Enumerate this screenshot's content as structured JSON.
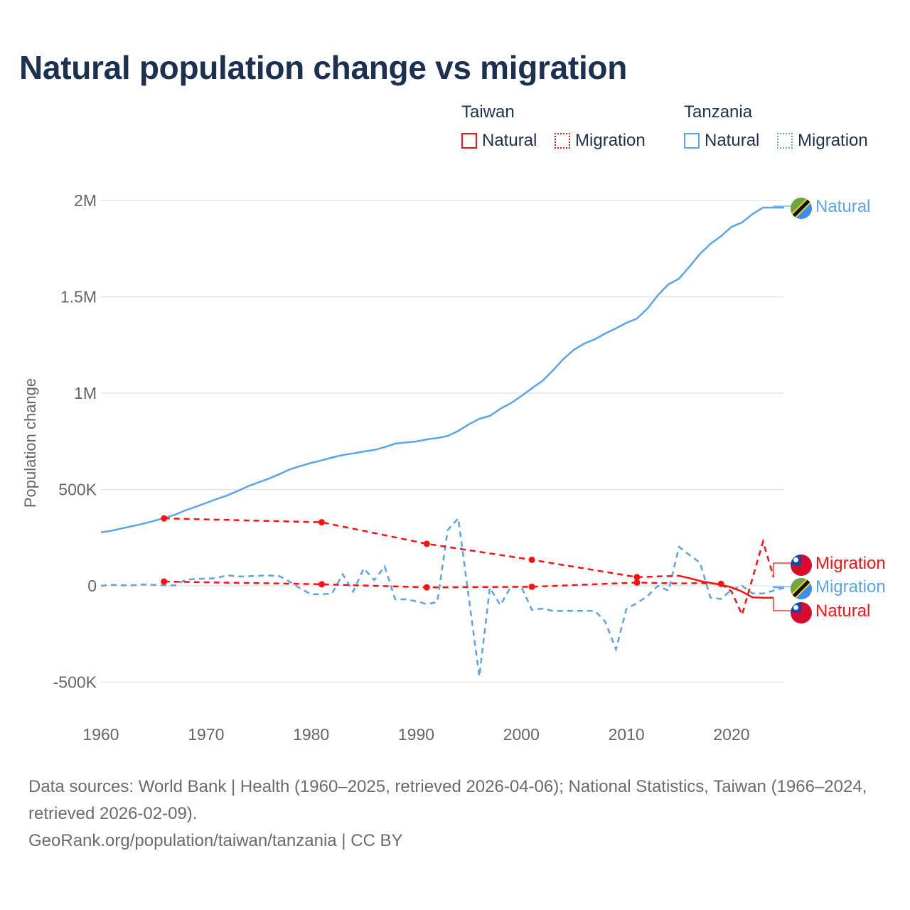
{
  "colors": {
    "taiwan": "#ff1010",
    "tanzania": "#5aa5ea",
    "title": "#1c3152",
    "grid": "#e6e6e6",
    "axis_text": "#666666"
  },
  "legend": {
    "groups": [
      {
        "heading": "Taiwan",
        "items": [
          "Natural",
          "Migration"
        ]
      },
      {
        "heading": "Tanzania",
        "items": [
          "Natural",
          "Migration"
        ]
      }
    ]
  },
  "footer": {
    "sources": "Data sources: World Bank | Health (1960–2025, retrieved 2026-04-06); National Statistics, Taiwan (1966–2024, retrieved 2026-02-09).",
    "credit": "GeoRank.org/population/taiwan/tanzania | CC BY"
  },
  "chart_data": {
    "type": "line",
    "title": "Natural population change vs migration",
    "xlabel": "",
    "ylabel": "Population change",
    "xlim": [
      1960,
      2025
    ],
    "ylim": [
      -550000,
      2100000
    ],
    "x_ticks": [
      1960,
      1970,
      1980,
      1990,
      2000,
      2010,
      2020
    ],
    "x_tick_labels": [
      "1960",
      "1970",
      "1980",
      "1990",
      "2000",
      "2010",
      "2020"
    ],
    "y_ticks": [
      -500000,
      0,
      500000,
      1000000,
      1500000,
      2000000
    ],
    "y_tick_labels": [
      "-500K",
      "0",
      "500K",
      "1M",
      "1.5M",
      "2M"
    ],
    "grid": true,
    "legend_placement": "top-right",
    "series": [
      {
        "name": "Natural",
        "country": "Tanzania",
        "flag": "tanzania-flag",
        "style": "solid",
        "color": "#5aa5ea",
        "end_label": "Natural",
        "x": [
          1960,
          1961,
          1962,
          1963,
          1964,
          1965,
          1966,
          1967,
          1968,
          1969,
          1970,
          1971,
          1972,
          1973,
          1974,
          1975,
          1976,
          1977,
          1978,
          1979,
          1980,
          1981,
          1982,
          1983,
          1984,
          1985,
          1986,
          1987,
          1988,
          1989,
          1990,
          1991,
          1992,
          1993,
          1994,
          1995,
          1996,
          1997,
          1998,
          1999,
          2000,
          2001,
          2002,
          2003,
          2004,
          2005,
          2006,
          2007,
          2008,
          2009,
          2010,
          2011,
          2012,
          2013,
          2014,
          2015,
          2016,
          2017,
          2018,
          2019,
          2020,
          2021,
          2022,
          2023,
          2024,
          2025
        ],
        "y": [
          277000,
          286000,
          298000,
          310000,
          322000,
          336000,
          352000,
          368000,
          391000,
          410000,
          430000,
          450000,
          469000,
          492000,
          517000,
          537000,
          557000,
          580000,
          605000,
          622000,
          638000,
          651000,
          666000,
          679000,
          687000,
          697000,
          705000,
          720000,
          738000,
          744000,
          749000,
          760000,
          767000,
          778000,
          804000,
          838000,
          867000,
          882000,
          919000,
          948000,
          985000,
          1025000,
          1063000,
          1118000,
          1177000,
          1225000,
          1258000,
          1280000,
          1310000,
          1336000,
          1365000,
          1387000,
          1439000,
          1509000,
          1565000,
          1594000,
          1657000,
          1723000,
          1775000,
          1815000,
          1863000,
          1886000,
          1930000,
          1963000,
          1963000,
          1963000
        ]
      },
      {
        "name": "Migration",
        "country": "Tanzania",
        "flag": "tanzania-flag",
        "style": "dashed",
        "color": "#5aa5ea",
        "end_label": "Migration",
        "x": [
          1960,
          1961,
          1962,
          1963,
          1964,
          1965,
          1966,
          1967,
          1968,
          1969,
          1970,
          1971,
          1972,
          1973,
          1974,
          1975,
          1976,
          1977,
          1978,
          1979,
          1980,
          1981,
          1982,
          1983,
          1984,
          1985,
          1986,
          1987,
          1988,
          1989,
          1990,
          1991,
          1992,
          1993,
          1994,
          1995,
          1996,
          1997,
          1998,
          1999,
          2000,
          2001,
          2002,
          2003,
          2004,
          2005,
          2006,
          2007,
          2008,
          2009,
          2010,
          2011,
          2012,
          2013,
          2014,
          2015,
          2016,
          2017,
          2018,
          2019,
          2020,
          2021,
          2022,
          2023,
          2024,
          2025
        ],
        "y": [
          0,
          5000,
          3000,
          3000,
          7000,
          5000,
          3000,
          2000,
          30000,
          36000,
          37000,
          40000,
          55000,
          48000,
          50000,
          52000,
          54000,
          50000,
          20000,
          -15000,
          -44000,
          -44000,
          -40000,
          60000,
          -30000,
          90000,
          30000,
          100000,
          -70000,
          -70000,
          -80000,
          -95000,
          -85000,
          290000,
          350000,
          -60000,
          -470000,
          -10000,
          -100000,
          -5000,
          -5000,
          -125000,
          -118000,
          -130000,
          -130000,
          -130000,
          -130000,
          -130000,
          -188000,
          -330000,
          -120000,
          -90000,
          -53000,
          0,
          -25000,
          202000,
          160000,
          120000,
          -62000,
          -68000,
          -20000,
          0,
          -40000,
          -40000,
          -25000,
          -10000
        ]
      },
      {
        "name": "Natural",
        "country": "Taiwan",
        "flag": "taiwan-flag",
        "style": "solid",
        "color": "#ff1010",
        "end_label": "Natural",
        "sparse_until": 2015,
        "markers": [
          1966,
          1981,
          1991,
          2001,
          2011
        ],
        "x": [
          1966,
          1981,
          1991,
          2001,
          2011,
          2015,
          2016,
          2017,
          2018,
          2019,
          2020,
          2021,
          2022,
          2023,
          2024
        ],
        "y": [
          350000,
          330000,
          218000,
          135000,
          45000,
          52000,
          40000,
          25000,
          15000,
          5000,
          -8000,
          -30000,
          -60000,
          -62000,
          -62000
        ]
      },
      {
        "name": "Migration",
        "country": "Taiwan",
        "flag": "taiwan-flag",
        "style": "dashed",
        "color": "#ff1010",
        "end_label": "Migration",
        "markers": [
          1966,
          1981,
          1991,
          2001,
          2011,
          2019
        ],
        "x": [
          1966,
          1981,
          1991,
          2001,
          2011,
          2015,
          2017,
          2019,
          2020,
          2021,
          2022,
          2023,
          2024
        ],
        "y": [
          22000,
          8000,
          -8000,
          -5000,
          17000,
          12000,
          14000,
          10000,
          -30000,
          -150000,
          40000,
          230000,
          45000
        ]
      }
    ]
  }
}
